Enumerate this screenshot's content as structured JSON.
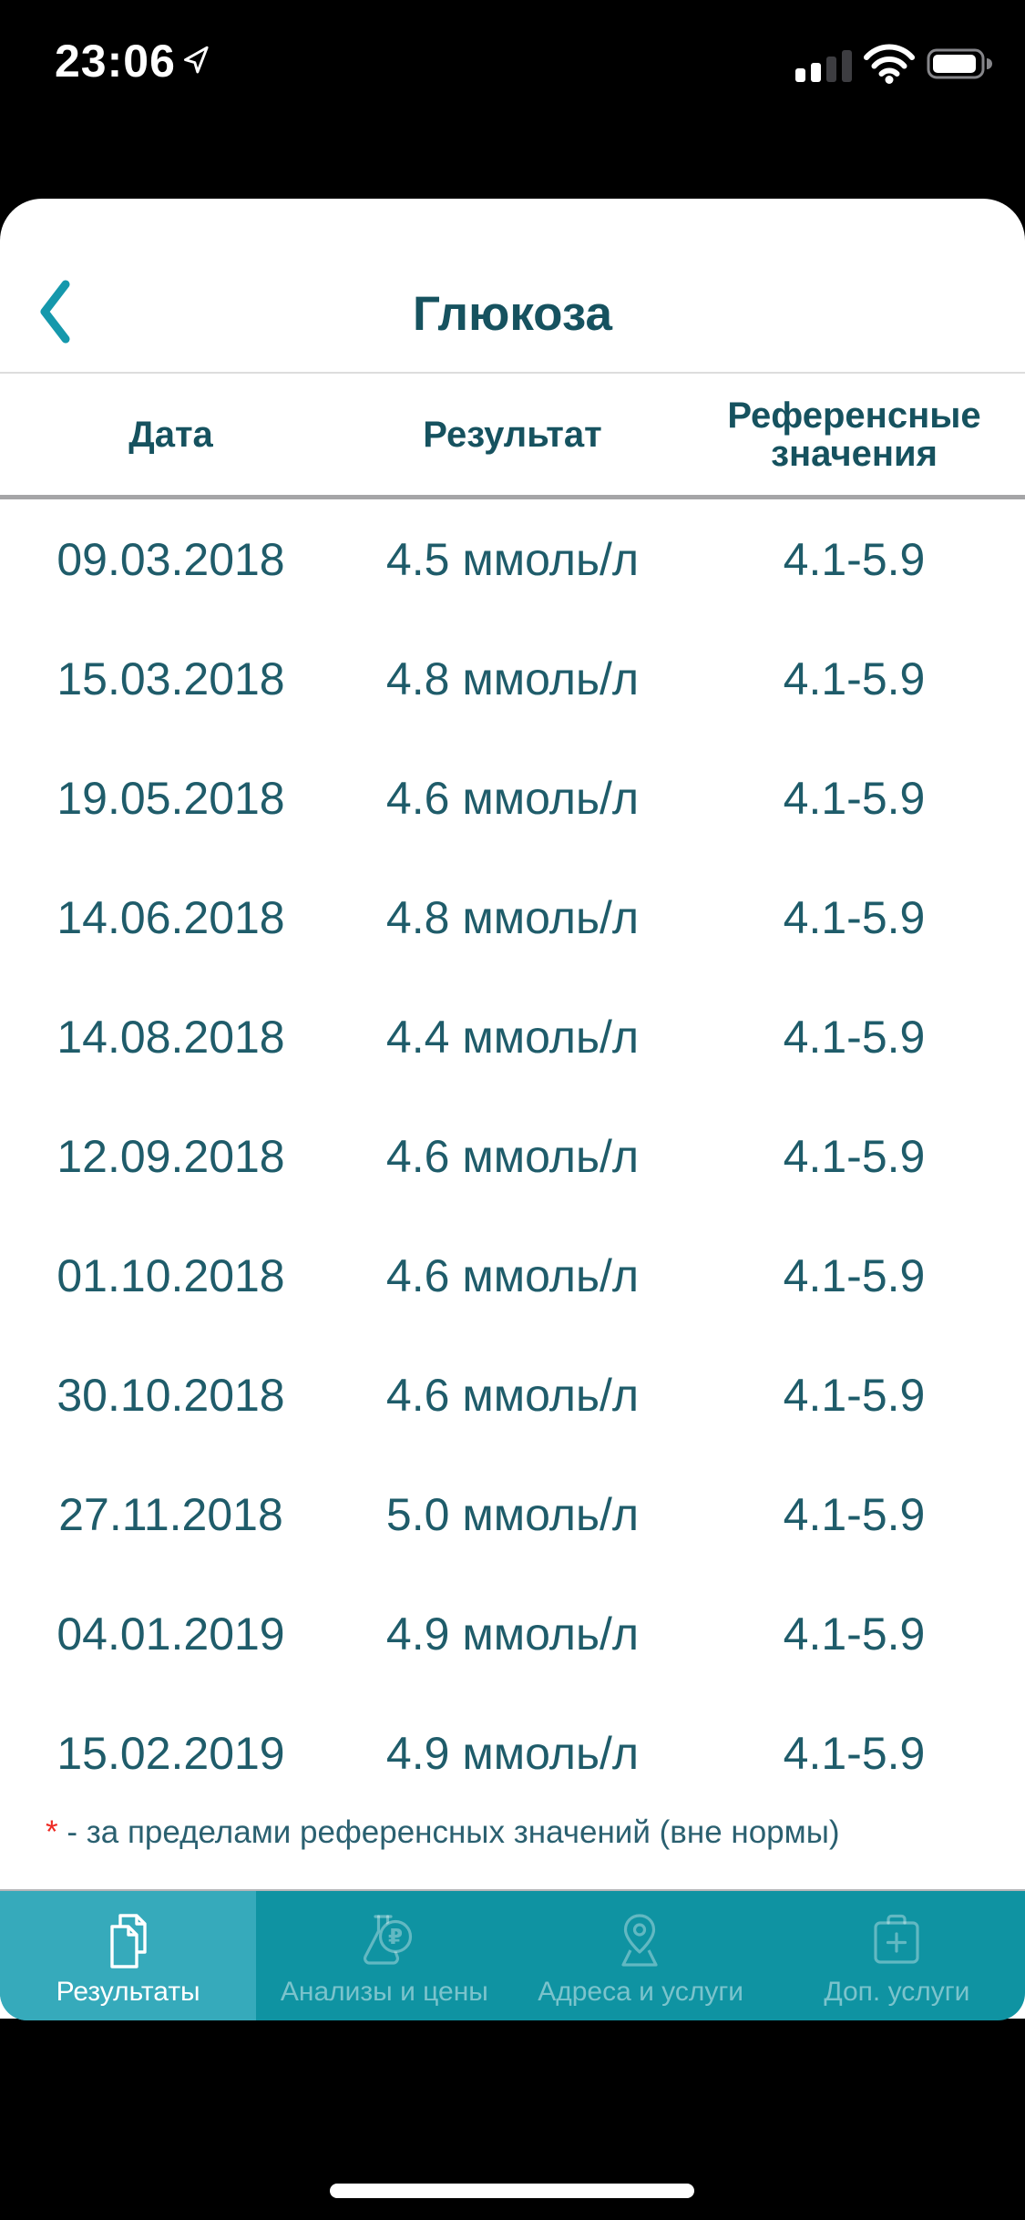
{
  "status_bar": {
    "time": "23:06"
  },
  "header": {
    "title": "Глюкоза"
  },
  "table": {
    "columns": [
      "Дата",
      "Результат",
      "Референсные значения"
    ],
    "rows": [
      {
        "date": "09.03.2018",
        "result": "4.5 ммоль/л",
        "reference": "4.1-5.9"
      },
      {
        "date": "15.03.2018",
        "result": "4.8 ммоль/л",
        "reference": "4.1-5.9"
      },
      {
        "date": "19.05.2018",
        "result": "4.6 ммоль/л",
        "reference": "4.1-5.9"
      },
      {
        "date": "14.06.2018",
        "result": "4.8 ммоль/л",
        "reference": "4.1-5.9"
      },
      {
        "date": "14.08.2018",
        "result": "4.4 ммоль/л",
        "reference": "4.1-5.9"
      },
      {
        "date": "12.09.2018",
        "result": "4.6 ммоль/л",
        "reference": "4.1-5.9"
      },
      {
        "date": "01.10.2018",
        "result": "4.6 ммоль/л",
        "reference": "4.1-5.9"
      },
      {
        "date": "30.10.2018",
        "result": "4.6 ммоль/л",
        "reference": "4.1-5.9"
      },
      {
        "date": "27.11.2018",
        "result": "5.0 ммоль/л",
        "reference": "4.1-5.9"
      },
      {
        "date": "04.01.2019",
        "result": "4.9 ммоль/л",
        "reference": "4.1-5.9"
      },
      {
        "date": "15.02.2019",
        "result": "4.9 ммоль/л",
        "reference": "4.1-5.9"
      }
    ]
  },
  "footnote": {
    "marker": "*",
    "text": " - за пределами референсных значений (вне нормы)"
  },
  "tab_bar": {
    "tabs": [
      {
        "name": "results",
        "label": "Результаты",
        "icon": "documents-icon",
        "active": true
      },
      {
        "name": "tests-and-prices",
        "label": "Анализы и цены",
        "icon": "flask-ruble-icon",
        "active": false
      },
      {
        "name": "addresses-services",
        "label": "Адреса и услуги",
        "icon": "map-pin-icon",
        "active": false
      },
      {
        "name": "extra-services",
        "label": "Доп. услуги",
        "icon": "medical-case-plus-icon",
        "active": false
      }
    ]
  },
  "colors": {
    "title_text": "#16525F",
    "row_text": "#1F5C6A",
    "divider_light": "#DDDDDD",
    "divider_dark": "#A5A5A7",
    "back_chevron": "#1598AC",
    "tab_bar_bg": "#0F93A2",
    "tab_active": "#36AABB",
    "footnote_red": "#EE2B24",
    "footnote_text": "#2A6070"
  }
}
